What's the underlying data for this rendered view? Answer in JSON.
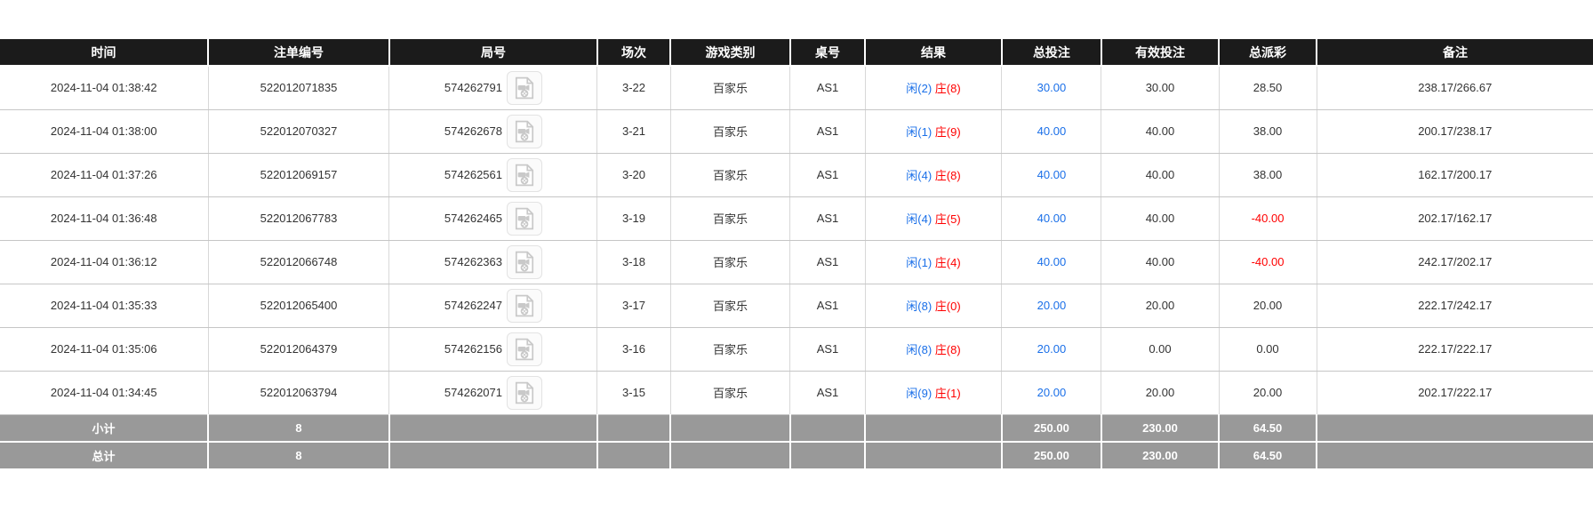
{
  "colors": {
    "header_bg": "#1b1b1b",
    "summary_bg": "#999999",
    "bet_amount_blue": "#1a6fe8",
    "player_blue": "#1a6fe8",
    "banker_red": "#ff0000",
    "negative_red": "#ff0000"
  },
  "table": {
    "headers": [
      "时间",
      "注单编号",
      "局号",
      "场次",
      "游戏类别",
      "桌号",
      "结果",
      "总投注",
      "有效投注",
      "总派彩",
      "备注"
    ],
    "rows": [
      {
        "time": "2024-11-04 01:38:42",
        "bet_no": "522012071835",
        "round_no": "574262791",
        "session": "3-22",
        "game": "百家乐",
        "table_no": "AS1",
        "result_player": "闲(2)",
        "result_banker": "庄(8)",
        "total_bet": "30.00",
        "valid_bet": "30.00",
        "payout": "28.50",
        "payout_negative": false,
        "remark": "238.17/266.67"
      },
      {
        "time": "2024-11-04 01:38:00",
        "bet_no": "522012070327",
        "round_no": "574262678",
        "session": "3-21",
        "game": "百家乐",
        "table_no": "AS1",
        "result_player": "闲(1)",
        "result_banker": "庄(9)",
        "total_bet": "40.00",
        "valid_bet": "40.00",
        "payout": "38.00",
        "payout_negative": false,
        "remark": "200.17/238.17"
      },
      {
        "time": "2024-11-04 01:37:26",
        "bet_no": "522012069157",
        "round_no": "574262561",
        "session": "3-20",
        "game": "百家乐",
        "table_no": "AS1",
        "result_player": "闲(4)",
        "result_banker": "庄(8)",
        "total_bet": "40.00",
        "valid_bet": "40.00",
        "payout": "38.00",
        "payout_negative": false,
        "remark": "162.17/200.17"
      },
      {
        "time": "2024-11-04 01:36:48",
        "bet_no": "522012067783",
        "round_no": "574262465",
        "session": "3-19",
        "game": "百家乐",
        "table_no": "AS1",
        "result_player": "闲(4)",
        "result_banker": "庄(5)",
        "total_bet": "40.00",
        "valid_bet": "40.00",
        "payout": "-40.00",
        "payout_negative": true,
        "remark": "202.17/162.17"
      },
      {
        "time": "2024-11-04 01:36:12",
        "bet_no": "522012066748",
        "round_no": "574262363",
        "session": "3-18",
        "game": "百家乐",
        "table_no": "AS1",
        "result_player": "闲(1)",
        "result_banker": "庄(4)",
        "total_bet": "40.00",
        "valid_bet": "40.00",
        "payout": "-40.00",
        "payout_negative": true,
        "remark": "242.17/202.17"
      },
      {
        "time": "2024-11-04 01:35:33",
        "bet_no": "522012065400",
        "round_no": "574262247",
        "session": "3-17",
        "game": "百家乐",
        "table_no": "AS1",
        "result_player": "闲(8)",
        "result_banker": "庄(0)",
        "total_bet": "20.00",
        "valid_bet": "20.00",
        "payout": "20.00",
        "payout_negative": false,
        "remark": "222.17/242.17"
      },
      {
        "time": "2024-11-04 01:35:06",
        "bet_no": "522012064379",
        "round_no": "574262156",
        "session": "3-16",
        "game": "百家乐",
        "table_no": "AS1",
        "result_player": "闲(8)",
        "result_banker": "庄(8)",
        "total_bet": "20.00",
        "valid_bet": "0.00",
        "payout": "0.00",
        "payout_negative": false,
        "remark": "222.17/222.17"
      },
      {
        "time": "2024-11-04 01:34:45",
        "bet_no": "522012063794",
        "round_no": "574262071",
        "session": "3-15",
        "game": "百家乐",
        "table_no": "AS1",
        "result_player": "闲(9)",
        "result_banker": "庄(1)",
        "total_bet": "20.00",
        "valid_bet": "20.00",
        "payout": "20.00",
        "payout_negative": false,
        "remark": "202.17/222.17"
      }
    ],
    "summary_rows": [
      {
        "label": "小计",
        "count": "8",
        "total_bet": "250.00",
        "valid_bet": "230.00",
        "payout": "64.50"
      },
      {
        "label": "总计",
        "count": "8",
        "total_bet": "250.00",
        "valid_bet": "230.00",
        "payout": "64.50"
      }
    ],
    "icons": {
      "round_icon": "video-replay-icon"
    }
  }
}
